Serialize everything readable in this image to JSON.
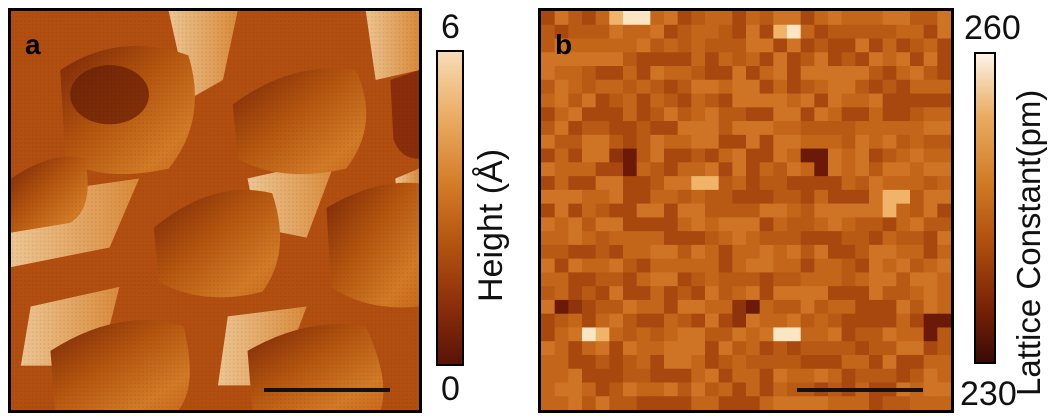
{
  "panel_a": {
    "letter": "a",
    "colorbar": {
      "label": "Height (Å)",
      "max": "6",
      "min": "0"
    },
    "colors": [
      "#5a1306",
      "#8a2d0a",
      "#b3530f",
      "#d47d28",
      "#eaa95f",
      "#f7dcb5"
    ]
  },
  "panel_b": {
    "letter": "b",
    "colorbar": {
      "label": "Lattice Constant(pm)",
      "max": "260",
      "min": "230"
    },
    "colors": [
      "#3a0a04",
      "#7a2308",
      "#ad4d0e",
      "#d07a24",
      "#eaac62",
      "#fdf3e6"
    ]
  }
}
